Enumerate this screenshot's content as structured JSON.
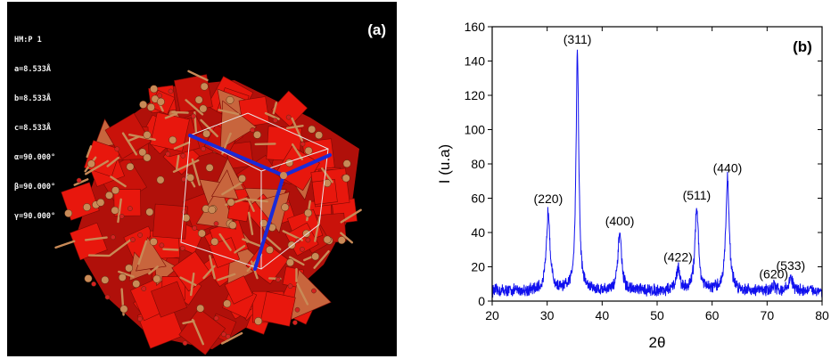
{
  "panel_a": {
    "label": "(a)",
    "info_lines": [
      "HM:P 1",
      "a=8.533Å",
      "b=8.533Å",
      "c=8.533Å",
      "α=90.000°",
      "β=90.000°",
      "γ=90.000°"
    ],
    "colors": {
      "background": "#000000",
      "octahedra": "#e8170d",
      "tetrahedra": "#c8653d",
      "bonds": "#c88a57",
      "atoms_o": "#d42020",
      "axes": "#1a2ad8"
    }
  },
  "chart_data": {
    "type": "line",
    "panel_label": "(b)",
    "xlabel": "2θ",
    "ylabel": "I (u.a)",
    "xlim": [
      20,
      80
    ],
    "ylim": [
      0,
      160
    ],
    "xticks": [
      20,
      30,
      40,
      50,
      60,
      70,
      80
    ],
    "yticks": [
      0,
      20,
      40,
      60,
      80,
      100,
      120,
      140,
      160
    ],
    "grid": false,
    "line_color": "#1010ee",
    "baseline": 6,
    "peaks": [
      {
        "hkl": "(220)",
        "x": 30.2,
        "y": 53
      },
      {
        "hkl": "(311)",
        "x": 35.5,
        "y": 146
      },
      {
        "hkl": "(400)",
        "x": 43.2,
        "y": 40
      },
      {
        "hkl": "(422)",
        "x": 53.8,
        "y": 19
      },
      {
        "hkl": "(511)",
        "x": 57.2,
        "y": 55
      },
      {
        "hkl": "(440)",
        "x": 62.8,
        "y": 71
      },
      {
        "hkl": "(620)",
        "x": 71.2,
        "y": 9
      },
      {
        "hkl": "(533)",
        "x": 74.3,
        "y": 14
      }
    ]
  }
}
